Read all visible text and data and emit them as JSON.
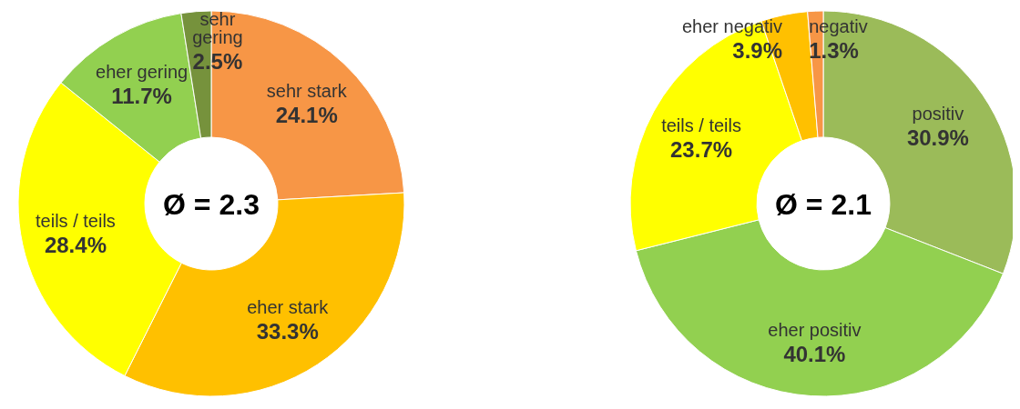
{
  "chart_data": [
    {
      "type": "donut",
      "categories": [
        "sehr stark",
        "eher stark",
        "teils / teils",
        "eher gering",
        "sehr gering"
      ],
      "values": [
        24.1,
        33.3,
        28.4,
        11.7,
        2.5
      ],
      "colors": [
        "#f79646",
        "#ffc000",
        "#ffff00",
        "#92d050",
        "#76923c"
      ],
      "value_labels": [
        "24.1%",
        "33.3%",
        "28.4%",
        "11.7%",
        "2.5%"
      ],
      "annotations": [
        "Ø = 2.3"
      ]
    },
    {
      "type": "donut",
      "categories": [
        "positiv",
        "eher positiv",
        "teils / teils",
        "eher negativ",
        "negativ"
      ],
      "values": [
        30.9,
        40.1,
        23.7,
        3.9,
        1.3
      ],
      "colors": [
        "#9bbb59",
        "#92d050",
        "#ffff00",
        "#ffc000",
        "#f79646"
      ],
      "value_labels": [
        "30.9%",
        "40.1%",
        "23.7%",
        "3.9%",
        "1.3%"
      ],
      "annotations": [
        "Ø = 2.1"
      ]
    }
  ]
}
